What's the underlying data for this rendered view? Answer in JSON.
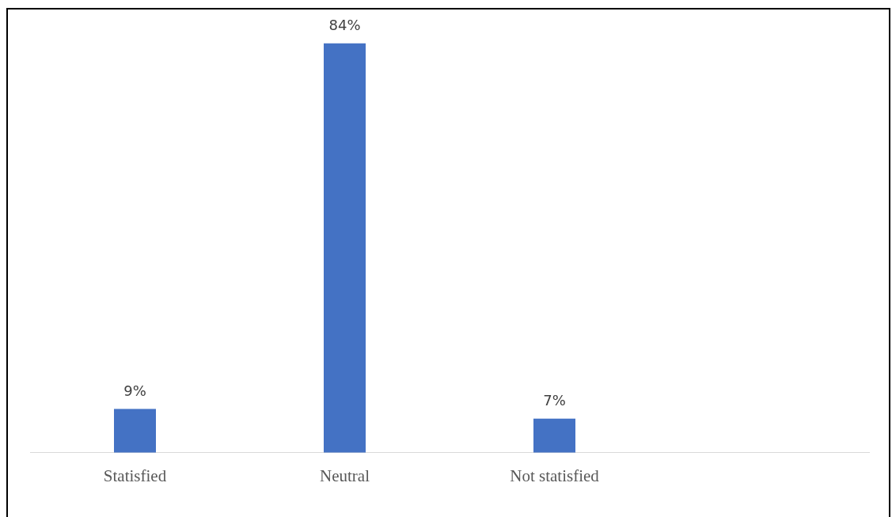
{
  "chart_data": {
    "type": "bar",
    "categories": [
      "Statisfied",
      "Neutral",
      "Not statisfied",
      null
    ],
    "values": [
      9,
      84,
      7,
      null
    ],
    "value_labels": [
      "9%",
      "84%",
      "7%",
      null
    ],
    "color": "#4472c4",
    "grid": false,
    "legend": false
  }
}
